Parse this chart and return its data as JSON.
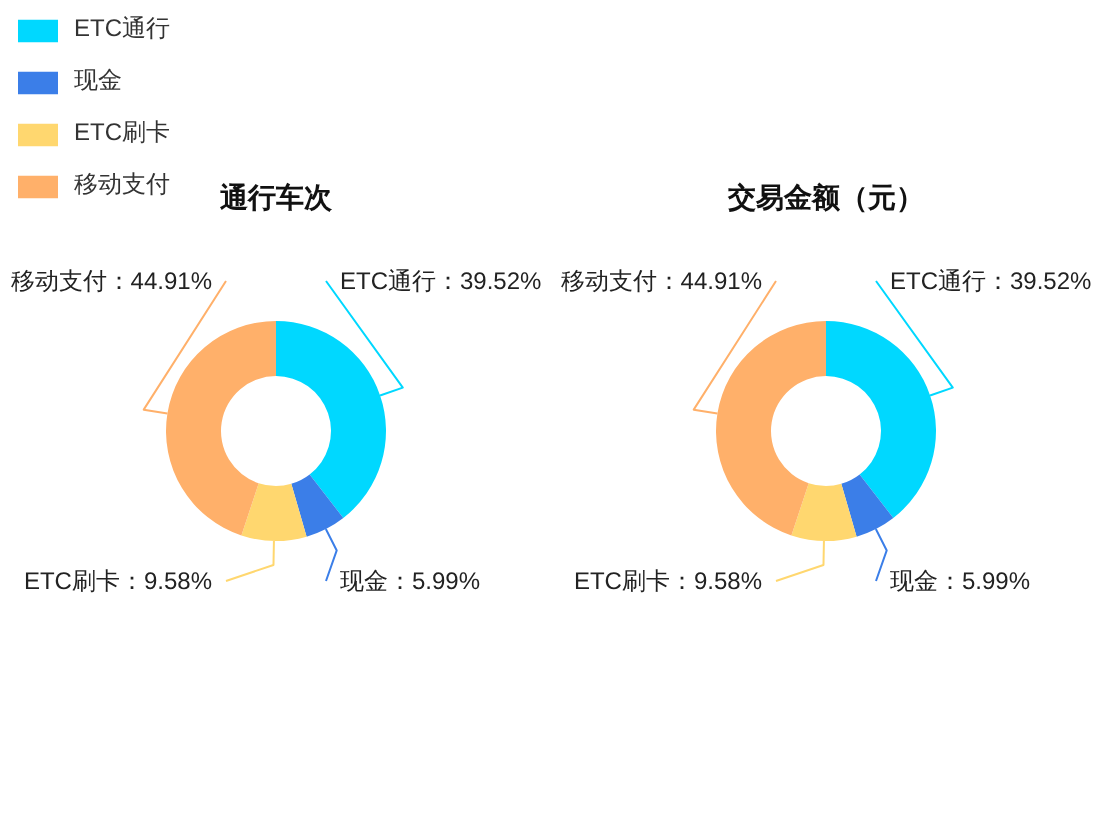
{
  "chart_data": {
    "type": "donut",
    "categories": [
      "ETC通行",
      "现金",
      "ETC刷卡",
      "移动支付"
    ],
    "colors": [
      "#00d8ff",
      "#3b7ee8",
      "#ffd76f",
      "#ffb06a"
    ],
    "legend": "top left",
    "series": [
      {
        "name": "通行车次",
        "values": [
          39.52,
          5.99,
          9.58,
          44.91
        ],
        "value_labels": [
          "ETC通行：39.52%",
          "现金：5.99%",
          "ETC刷卡：9.58%",
          "移动支付：44.91%"
        ]
      },
      {
        "name": "交易金额（元）",
        "values": [
          39.52,
          5.99,
          9.58,
          44.91
        ],
        "value_labels": [
          "ETC通行：39.52%",
          "现金：5.99%",
          "ETC刷卡：9.58%",
          "移动支付：44.91%"
        ]
      }
    ]
  }
}
